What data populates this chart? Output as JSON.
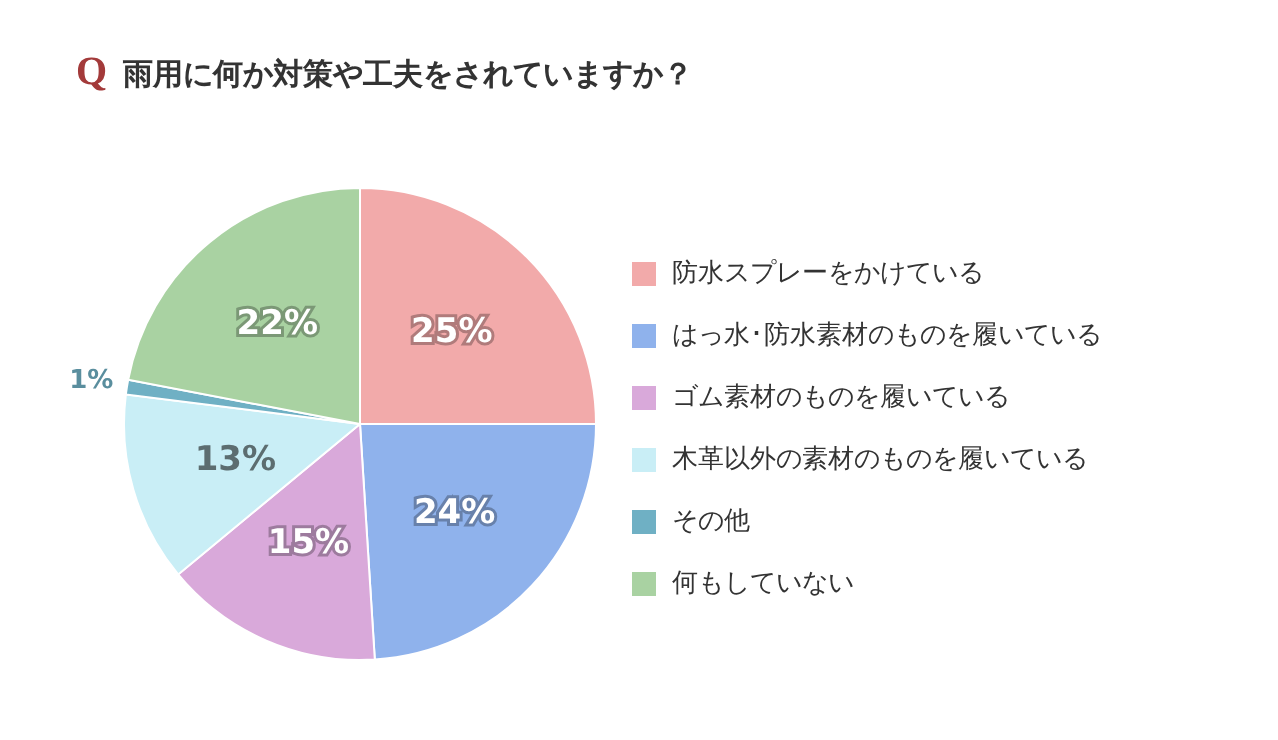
{
  "chart_data": {
    "type": "pie",
    "title": "Q 雨用に何か対策や工夫をされていますか？",
    "categories": [
      "防水スプレーをかけている",
      "はっ水･防水素材のものを履いている",
      "ゴム素材のものを履いている",
      "木革以外の素材のものを履いている",
      "その他",
      "何もしていない"
    ],
    "values": [
      25,
      24,
      15,
      13,
      1,
      22
    ],
    "value_labels": [
      "25%",
      "24%",
      "15%",
      "13%",
      "1%",
      "22%"
    ],
    "colors": [
      "#f2aaaa",
      "#8fb2ec",
      "#d9a9da",
      "#c9eef6",
      "#6fb0c4",
      "#a9d2a2"
    ],
    "legend": "right"
  }
}
